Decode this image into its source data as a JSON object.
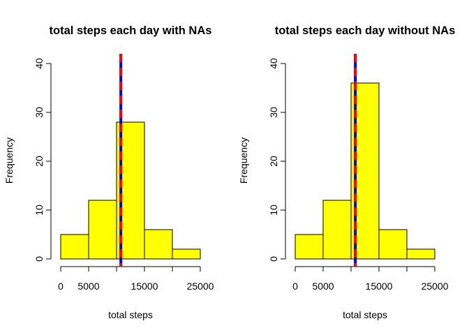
{
  "chart_data": [
    {
      "type": "bar",
      "title": "total steps each day with NAs",
      "xlabel": "total steps",
      "ylabel": "Frequency",
      "bin_edges": [
        0,
        5000,
        10000,
        15000,
        20000,
        25000
      ],
      "values": [
        5,
        12,
        28,
        6,
        2
      ],
      "xlim": [
        0,
        25000
      ],
      "ylim": [
        0,
        40
      ],
      "x_tick_labels": [
        "0",
        "5000",
        "15000",
        "25000"
      ],
      "x_tick_values": [
        0,
        5000,
        15000,
        25000
      ],
      "x_tick_marks": [
        0,
        5000,
        10000,
        15000,
        20000,
        25000
      ],
      "y_ticks": [
        0,
        10,
        20,
        30,
        40
      ],
      "bar_color": "#ffff00",
      "reference_lines": [
        {
          "x": 10766,
          "color": "#0000ff",
          "style": "solid"
        },
        {
          "x": 10766,
          "color": "#ff0000",
          "style": "dashed"
        }
      ],
      "grid": false
    },
    {
      "type": "bar",
      "title": "total steps each day without NAs",
      "xlabel": "total steps",
      "ylabel": "Frequency",
      "bin_edges": [
        0,
        5000,
        10000,
        15000,
        20000,
        25000
      ],
      "values": [
        5,
        12,
        36,
        6,
        2
      ],
      "xlim": [
        0,
        25000
      ],
      "ylim": [
        0,
        40
      ],
      "x_tick_labels": [
        "0",
        "5000",
        "15000",
        "25000"
      ],
      "x_tick_values": [
        0,
        5000,
        15000,
        25000
      ],
      "x_tick_marks": [
        0,
        5000,
        10000,
        15000,
        20000,
        25000
      ],
      "y_ticks": [
        0,
        10,
        20,
        30,
        40
      ],
      "bar_color": "#ffff00",
      "reference_lines": [
        {
          "x": 10766,
          "color": "#0000ff",
          "style": "solid"
        },
        {
          "x": 10766,
          "color": "#ff0000",
          "style": "dashed"
        }
      ],
      "grid": false
    }
  ]
}
